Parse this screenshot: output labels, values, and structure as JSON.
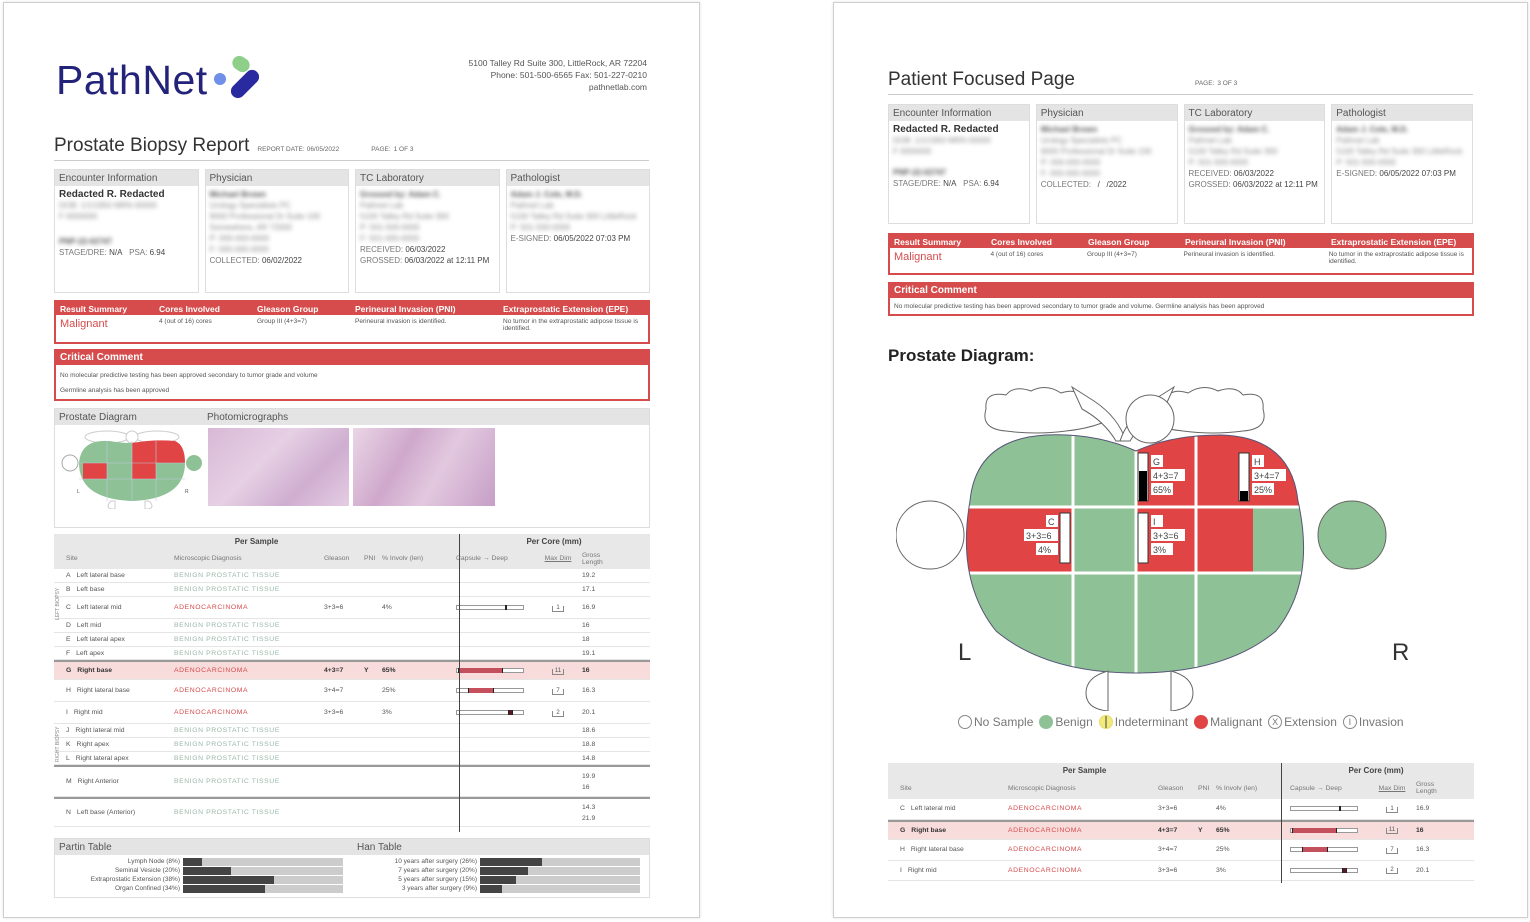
{
  "page1": {
    "logo": {
      "text": "PathNet"
    },
    "address": {
      "line1": "5100 Talley Rd Suite 300, LittleRock, AR 72204",
      "line2": "Phone: 501-500-6565 Fax: 501-227-0210",
      "line3": "pathnetlab.com"
    },
    "title": "Prostate Biopsy Report",
    "report_date_label": "REPORT DATE:",
    "report_date": "06/05/2022",
    "page_label": "PAGE:",
    "page_value": "1 of 3",
    "info": {
      "encounter": {
        "header": "Encounter Information",
        "name": "Redacted R. Redacted",
        "line1": "DOB: 1/1/1950 MRN 00000",
        "line2": "F 0000000",
        "id": "PNP-22-02747",
        "stage_label": "STAGE/DRE:",
        "stage": "N/A",
        "psa_label": "PSA:",
        "psa": "6.94"
      },
      "physician": {
        "header": "Physician",
        "name": "Michael Brown",
        "line1": "Urology Specialists PC",
        "line2": "9000 Professional Dr Suite 100",
        "line3": "Somewhere, AR 72000",
        "line4": "P: 000-000-0000",
        "line5": "F: 000-000-0000",
        "collected_label": "COLLECTED:",
        "collected": "06/02/2022"
      },
      "lab": {
        "header": "TC Laboratory",
        "name": "Grossed by: Adam C.",
        "line1": "Pathnet Lab",
        "line2": "5100 Talley Rd Suite 300",
        "line3": "P: 501-500-0000",
        "line4": "F: 501-000-0000",
        "received_label": "RECEIVED:",
        "received": "06/03/2022",
        "grossed_label": "GROSSED:",
        "grossed": "06/03/2022 at 12:11 PM"
      },
      "pathologist": {
        "header": "Pathologist",
        "name": "Adam J. Cole, M.D.",
        "line1": "Pathnet Lab",
        "line2": "5100 Talley Rd Suite 300 LittleRock",
        "line3": "P: 501-500-0000",
        "esigned_label": "E-SIGNED:",
        "esigned": "06/05/2022 07:03 PM"
      }
    },
    "result": {
      "headers": [
        "Result Summary",
        "Cores Involved",
        "Gleason Group",
        "Perineural Invasion (PNI)",
        "Extraprostatic Extension (EPE)"
      ],
      "values": [
        "Malignant",
        "4 (out of 16) cores",
        "Group III (4+3=7)",
        "Perineural invasion is identified.",
        "No tumor in the extraprostatic adipose tissue is identified."
      ]
    },
    "critical": {
      "header": "Critical Comment",
      "line1": "No molecular predictive testing has been approved secondary to tumor grade and volume",
      "line2": "Germline analysis has been approved"
    },
    "diagram_section": {
      "header_left": "Prostate Diagram",
      "header_right": "Photomicrographs",
      "left_label": "L",
      "right_label": "R"
    },
    "sample_table": {
      "group_left": "Per Sample",
      "group_right": "Per Core (mm)",
      "columns": [
        "Site",
        "Microscopic Diagnosis",
        "Gleason",
        "PNI",
        "% Involv (len)",
        "Capsule → Deep",
        "Max Dim",
        "Gross Length"
      ],
      "side_left": "LEFT BIOPSY",
      "side_right": "RIGHT BIOPSY",
      "rows": [
        {
          "id": "A",
          "site": "Left lateral base",
          "diag": "BENIGN PROSTATIC TISSUE",
          "gleason": "",
          "pni": "",
          "inv": "",
          "maxdim": "",
          "gross": "19.2"
        },
        {
          "id": "B",
          "site": "Left base",
          "diag": "BENIGN PROSTATIC TISSUE",
          "gleason": "",
          "pni": "",
          "inv": "",
          "maxdim": "",
          "gross": "17.1"
        },
        {
          "id": "C",
          "site": "Left lateral mid",
          "diag": "ADENOCARCINOMA",
          "gleason": "3+3=6",
          "pni": "",
          "inv": "4%",
          "maxdim": "1",
          "gross": "16.9"
        },
        {
          "id": "D",
          "site": "Left mid",
          "diag": "BENIGN PROSTATIC TISSUE",
          "gleason": "",
          "pni": "",
          "inv": "",
          "maxdim": "",
          "gross": "16"
        },
        {
          "id": "E",
          "site": "Left lateral apex",
          "diag": "BENIGN PROSTATIC TISSUE",
          "gleason": "",
          "pni": "",
          "inv": "",
          "maxdim": "",
          "gross": "18"
        },
        {
          "id": "F",
          "site": "Left apex",
          "diag": "BENIGN PROSTATIC TISSUE",
          "gleason": "",
          "pni": "",
          "inv": "",
          "maxdim": "",
          "gross": "19.1"
        },
        {
          "id": "G",
          "site": "Right base",
          "diag": "ADENOCARCINOMA",
          "gleason": "4+3=7",
          "pni": "Y",
          "inv": "65%",
          "maxdim": "11",
          "gross": "16"
        },
        {
          "id": "H",
          "site": "Right lateral base",
          "diag": "ADENOCARCINOMA",
          "gleason": "3+4=7",
          "pni": "",
          "inv": "25%",
          "maxdim": "7",
          "gross": "16.3"
        },
        {
          "id": "I",
          "site": "Right mid",
          "diag": "ADENOCARCINOMA",
          "gleason": "3+3=6",
          "pni": "",
          "inv": "3%",
          "maxdim": "2",
          "gross": "20.1"
        },
        {
          "id": "J",
          "site": "Right lateral mid",
          "diag": "BENIGN PROSTATIC TISSUE",
          "gleason": "",
          "pni": "",
          "inv": "",
          "maxdim": "",
          "gross": "18.6"
        },
        {
          "id": "K",
          "site": "Right apex",
          "diag": "BENIGN PROSTATIC TISSUE",
          "gleason": "",
          "pni": "",
          "inv": "",
          "maxdim": "",
          "gross": "18.8"
        },
        {
          "id": "L",
          "site": "Right lateral apex",
          "diag": "BENIGN PROSTATIC TISSUE",
          "gleason": "",
          "pni": "",
          "inv": "",
          "maxdim": "",
          "gross": "14.8"
        },
        {
          "id": "M",
          "site": "Right Anterior",
          "diag": "BENIGN PROSTATIC TISSUE",
          "gleason": "",
          "pni": "",
          "inv": "",
          "maxdim": "",
          "gross": "19.9",
          "gross2": "16"
        },
        {
          "id": "N",
          "site": "Left base (Anterior)",
          "diag": "BENIGN PROSTATIC TISSUE",
          "gleason": "",
          "pni": "",
          "inv": "",
          "maxdim": "",
          "gross": "14.3",
          "gross2": "21.9"
        }
      ]
    },
    "partin": {
      "header": "Partin Table",
      "items": [
        {
          "label": "Lymph Node (8%)",
          "pct": 8
        },
        {
          "label": "Seminal Vesicle (20%)",
          "pct": 20
        },
        {
          "label": "Extraprostatic Extension (38%)",
          "pct": 38
        },
        {
          "label": "Organ Confined (34%)",
          "pct": 34
        }
      ]
    },
    "han": {
      "header": "Han Table",
      "items": [
        {
          "label": "10 years after surgery (26%)",
          "pct": 26
        },
        {
          "label": "7 years after surgery (20%)",
          "pct": 20
        },
        {
          "label": "5 years after surgery (15%)",
          "pct": 15
        },
        {
          "label": "3 years after surgery (9%)",
          "pct": 9
        }
      ]
    }
  },
  "page2": {
    "title": "Patient Focused Page",
    "page_label": "PAGE:",
    "page_value": "3 of 3",
    "collected": "  /   /2022",
    "critical_line": "No molecular predictive testing has been approved secondary to tumor grade and volume. Germline analysis has been approved",
    "diagram_title": "Prostate Diagram:",
    "left_label": "L",
    "right_label": "R",
    "zones": [
      {
        "id": "G",
        "gleason": "4+3=7",
        "pct": "65%"
      },
      {
        "id": "H",
        "gleason": "3+4=7",
        "pct": "25%"
      },
      {
        "id": "C",
        "gleason": "3+3=6",
        "pct": "4%"
      },
      {
        "id": "I",
        "gleason": "3+3=6",
        "pct": "3%"
      }
    ],
    "legend": [
      "No Sample",
      "Benign",
      "Indeterminant",
      "Malignant",
      "Extension",
      "Invasion"
    ],
    "legend_marks": {
      "extension": "X",
      "invasion": "I"
    },
    "table_rows": [
      {
        "id": "C",
        "site": "Left lateral mid",
        "diag": "ADENOCARCINOMA",
        "gleason": "3+3=6",
        "pni": "",
        "inv": "4%",
        "maxdim": "1",
        "gross": "16.9"
      },
      {
        "id": "G",
        "site": "Right base",
        "diag": "ADENOCARCINOMA",
        "gleason": "4+3=7",
        "pni": "Y",
        "inv": "65%",
        "maxdim": "11",
        "gross": "16"
      },
      {
        "id": "H",
        "site": "Right lateral base",
        "diag": "ADENOCARCINOMA",
        "gleason": "3+4=7",
        "pni": "",
        "inv": "25%",
        "maxdim": "7",
        "gross": "16.3"
      },
      {
        "id": "I",
        "site": "Right mid",
        "diag": "ADENOCARCINOMA",
        "gleason": "3+3=6",
        "pni": "",
        "inv": "3%",
        "maxdim": "2",
        "gross": "20.1"
      }
    ]
  },
  "colors": {
    "red": "#d64b4b",
    "green": "#8fc196",
    "navy": "#23237a",
    "highlight": "#f8dcdc"
  }
}
